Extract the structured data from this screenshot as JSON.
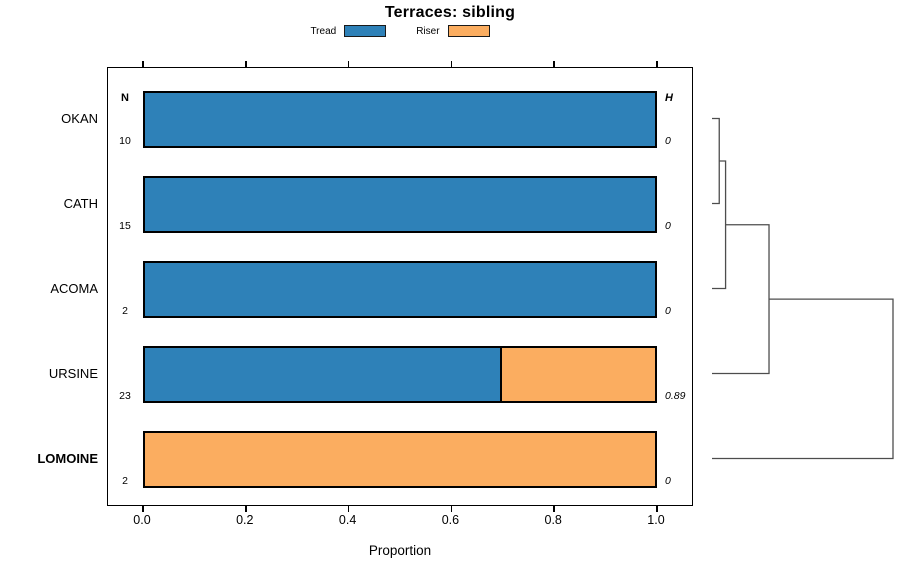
{
  "chart_data": {
    "type": "bar",
    "subtype": "horizontal-stacked-proportion",
    "title": "Terraces: sibling",
    "xlabel": "Proportion",
    "xlim": [
      0,
      1
    ],
    "xtick_labels": [
      "0.0",
      "0.2",
      "0.4",
      "0.6",
      "0.8",
      "1.0"
    ],
    "grid": false,
    "legend_position": "top-center",
    "categories": [
      "OKAN",
      "CATH",
      "ACOMA",
      "URSINE",
      "LOMOINE"
    ],
    "bold_category": "LOMOINE",
    "series": [
      {
        "name": "Tread",
        "color": "#2e81b8",
        "values": [
          1,
          1,
          1,
          0.696,
          0
        ]
      },
      {
        "name": "Riser",
        "color": "#fbad60",
        "values": [
          0,
          0,
          0,
          0.304,
          1
        ]
      }
    ],
    "columns": {
      "n": {
        "header": "N",
        "values": [
          "10",
          "15",
          "2",
          "23",
          "2"
        ]
      },
      "h": {
        "header": "H",
        "values": [
          "0",
          "0",
          "0",
          "0.89",
          "0"
        ]
      }
    },
    "dendrogram": {
      "orientation": "right",
      "merges": [
        {
          "a": "OKAN",
          "b": "CATH",
          "height": 0.04
        },
        {
          "a": "merge1",
          "b": "ACOMA",
          "height": 0.075
        },
        {
          "a": "merge2",
          "b": "URSINE",
          "height": 0.315
        },
        {
          "a": "merge3",
          "b": "LOMOINE",
          "height": 1.0
        }
      ]
    },
    "colors": {
      "bar_border": "#000000",
      "dendrogram_line": "#4d4d4d",
      "text": "#000000"
    }
  }
}
